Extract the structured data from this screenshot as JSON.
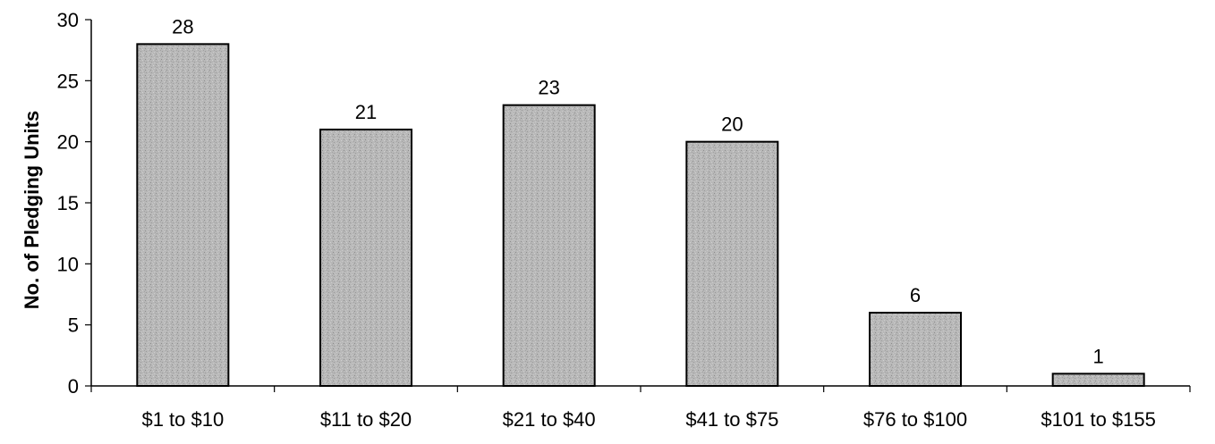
{
  "chart_data": {
    "type": "bar",
    "title": "",
    "xlabel": "",
    "ylabel": "No. of Pledging Units",
    "ylim": [
      0,
      30
    ],
    "yticks": [
      0,
      5,
      10,
      15,
      20,
      25,
      30
    ],
    "categories": [
      "$1 to $10",
      "$11 to $20",
      "$21 to $40",
      "$41 to $75",
      "$76 to $100",
      "$101 to $155"
    ],
    "values": [
      28,
      21,
      23,
      20,
      6,
      1
    ],
    "data_labels": [
      "28",
      "21",
      "23",
      "20",
      "6",
      "1"
    ],
    "grid": false,
    "legend": "none",
    "bar_color": "#b4b4b4",
    "bar_edge_color": "#000000"
  }
}
